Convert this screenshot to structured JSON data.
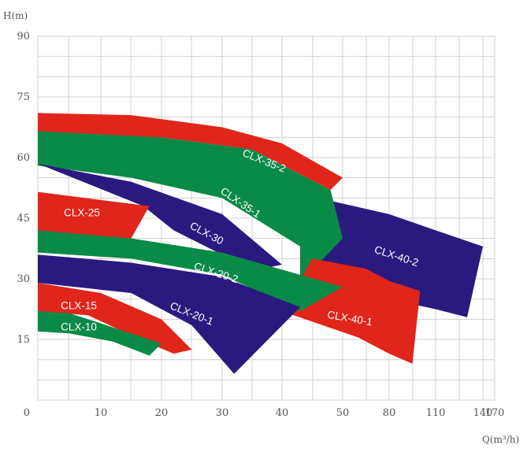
{
  "chart_data": {
    "type": "area",
    "title": "",
    "ylabel": "H(m)",
    "xlabel": "Q(m³/h)",
    "ylim": [
      0,
      90
    ],
    "y_ticks": [
      "0",
      "15",
      "30",
      "45",
      "60",
      "75",
      "90"
    ],
    "x_ticks": [
      "0",
      "10",
      "20",
      "30",
      "40",
      "50",
      "80",
      "110",
      "140",
      "170"
    ],
    "grid": true,
    "colors": {
      "red": "#e0251b",
      "green": "#0a8a47",
      "blue": "#2a1a7f",
      "grid": "#d0d0d0"
    },
    "series": [
      {
        "name": "CLX-35-2",
        "color": "red",
        "top": [
          [
            0,
            71
          ],
          [
            15,
            70.5
          ],
          [
            30,
            67.5
          ],
          [
            40,
            63.5
          ],
          [
            50,
            55
          ]
        ],
        "bottom": [
          [
            0,
            66
          ],
          [
            20,
            65
          ],
          [
            35,
            62
          ],
          [
            48,
            52
          ],
          [
            50,
            55
          ]
        ]
      },
      {
        "name": "CLX-40-2",
        "color": "blue",
        "top": [
          [
            43,
            51
          ],
          [
            80,
            46
          ],
          [
            110,
            42
          ],
          [
            140,
            38
          ]
        ],
        "bottom": [
          [
            43,
            30
          ],
          [
            80,
            25
          ],
          [
            110,
            22.5
          ],
          [
            130,
            20.5
          ],
          [
            140,
            38
          ]
        ]
      },
      {
        "name": "CLX-35-1",
        "color": "green",
        "top": [
          [
            0,
            66.5
          ],
          [
            20,
            65
          ],
          [
            35,
            62
          ],
          [
            48,
            52
          ],
          [
            50,
            40
          ]
        ],
        "bottom": [
          [
            0,
            58
          ],
          [
            15,
            55
          ],
          [
            30,
            50
          ],
          [
            43,
            38
          ],
          [
            43,
            29
          ],
          [
            50,
            40
          ]
        ]
      },
      {
        "name": "CLX-40-1",
        "color": "red",
        "top": [
          [
            45,
            35
          ],
          [
            65,
            32.5
          ],
          [
            80,
            29.5
          ],
          [
            100,
            27
          ]
        ],
        "bottom": [
          [
            40,
            22
          ],
          [
            60,
            15.5
          ],
          [
            80,
            11.5
          ],
          [
            95,
            9
          ],
          [
            100,
            27
          ]
        ]
      },
      {
        "name": "CLX-30",
        "color": "blue",
        "top": [
          [
            0,
            58.5
          ],
          [
            15,
            54
          ],
          [
            30,
            46
          ],
          [
            40,
            33.5
          ]
        ],
        "bottom": [
          [
            17,
            48
          ],
          [
            22,
            42
          ],
          [
            30,
            36
          ],
          [
            35,
            32
          ],
          [
            40,
            33.5
          ]
        ]
      },
      {
        "name": "CLX-25",
        "color": "red",
        "top": [
          [
            0,
            51.5
          ],
          [
            5,
            50.5
          ],
          [
            10,
            49.5
          ],
          [
            18,
            48
          ]
        ],
        "bottom": [
          [
            0,
            41
          ],
          [
            5,
            40.5
          ],
          [
            10,
            40
          ],
          [
            15,
            40
          ],
          [
            18,
            48
          ]
        ]
      },
      {
        "name": "CLX-20-2",
        "color": "green",
        "top": [
          [
            0,
            42
          ],
          [
            15,
            40
          ],
          [
            30,
            36.5
          ],
          [
            50,
            28
          ]
        ],
        "bottom": [
          [
            0,
            36.5
          ],
          [
            15,
            35
          ],
          [
            30,
            31
          ],
          [
            43,
            22
          ],
          [
            50,
            28
          ]
        ]
      },
      {
        "name": "CLX-20-1",
        "color": "blue",
        "top": [
          [
            0,
            36
          ],
          [
            15,
            34
          ],
          [
            30,
            30.5
          ],
          [
            43,
            23
          ]
        ],
        "bottom": [
          [
            0,
            29
          ],
          [
            15,
            26.5
          ],
          [
            25,
            18.5
          ],
          [
            32,
            6.5
          ],
          [
            43,
            23
          ]
        ]
      },
      {
        "name": "CLX-15",
        "color": "red",
        "top": [
          [
            0,
            29
          ],
          [
            10,
            26.5
          ],
          [
            20,
            20
          ],
          [
            25,
            12.5
          ]
        ],
        "bottom": [
          [
            0,
            22
          ],
          [
            8,
            21
          ],
          [
            15,
            16
          ],
          [
            22,
            11.5
          ],
          [
            25,
            12.5
          ]
        ]
      },
      {
        "name": "CLX-10",
        "color": "green",
        "top": [
          [
            0,
            22
          ],
          [
            5,
            21.5
          ],
          [
            10,
            19
          ],
          [
            20,
            14
          ]
        ],
        "bottom": [
          [
            0,
            17
          ],
          [
            5,
            16.5
          ],
          [
            12,
            14.5
          ],
          [
            18,
            11
          ],
          [
            20,
            14
          ]
        ]
      }
    ]
  },
  "labels": [
    {
      "text": "CLX-35-2"
    },
    {
      "text": "CLX-35-1"
    },
    {
      "text": "CLX-25"
    },
    {
      "text": "CLX-30"
    },
    {
      "text": "CLX-40-2"
    },
    {
      "text": "CLX-20-2"
    },
    {
      "text": "CLX-15"
    },
    {
      "text": "CLX-20-1"
    },
    {
      "text": "CLX-40-1"
    },
    {
      "text": "CLX-10"
    }
  ]
}
